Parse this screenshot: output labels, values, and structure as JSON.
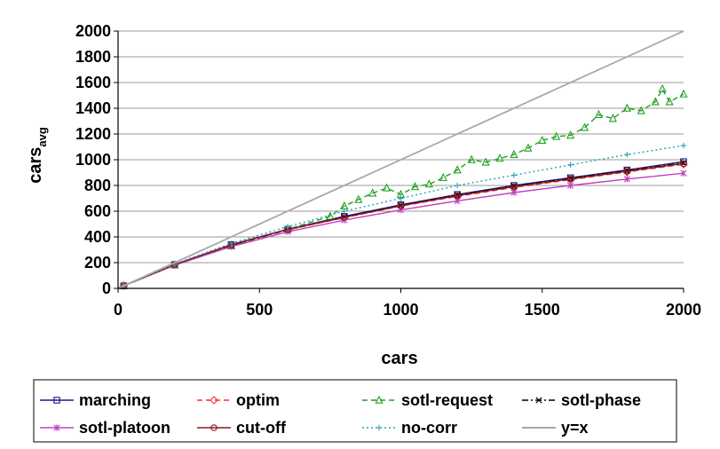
{
  "chart_data": {
    "type": "line",
    "title": "",
    "xlabel": "cars",
    "ylabel": {
      "main": "cars",
      "subscript": "avg"
    },
    "xlim": [
      0,
      2000
    ],
    "ylim": [
      0,
      2000
    ],
    "xticks": [
      "0",
      "500",
      "1000",
      "1500",
      "2000"
    ],
    "yticks": [
      "0",
      "200",
      "400",
      "600",
      "800",
      "1000",
      "1200",
      "1400",
      "1600",
      "1800",
      "2000"
    ],
    "grid": "horizontal",
    "legend_position": "bottom",
    "series": [
      {
        "name": "marching",
        "color": "#1a1a8c",
        "marker": "square",
        "dash": "solid",
        "x": [
          20,
          200,
          400,
          600,
          800,
          1000,
          1200,
          1400,
          1600,
          1800,
          2000
        ],
        "y": [
          20,
          185,
          340,
          460,
          560,
          650,
          730,
          800,
          860,
          920,
          985
        ]
      },
      {
        "name": "optim",
        "color": "#ff2a2a",
        "marker": "diamond",
        "dash": "dashed",
        "x": [
          20,
          200,
          400,
          600,
          800,
          1000,
          1200,
          1400,
          1600,
          1800,
          2000
        ],
        "y": [
          20,
          185,
          335,
          455,
          550,
          640,
          715,
          785,
          845,
          905,
          965
        ]
      },
      {
        "name": "sotl-request",
        "color": "#21a021",
        "marker": "triangle",
        "dash": "dashed",
        "x": [
          20,
          200,
          400,
          600,
          750,
          800,
          850,
          900,
          950,
          1000,
          1050,
          1100,
          1150,
          1200,
          1250,
          1300,
          1350,
          1400,
          1450,
          1500,
          1550,
          1600,
          1650,
          1700,
          1750,
          1800,
          1850,
          1900,
          1925,
          1950,
          2000
        ],
        "y": [
          20,
          180,
          330,
          460,
          560,
          640,
          690,
          740,
          780,
          730,
          790,
          810,
          860,
          920,
          1000,
          980,
          1010,
          1040,
          1090,
          1150,
          1180,
          1190,
          1250,
          1350,
          1320,
          1400,
          1380,
          1450,
          1550,
          1450,
          1510
        ]
      },
      {
        "name": "sotl-phase",
        "color": "#000000",
        "marker": "x",
        "dash": "dashdot",
        "x": [
          20,
          200,
          400,
          600,
          800,
          1000,
          1200,
          1400,
          1600,
          1800,
          2000
        ],
        "y": [
          20,
          185,
          335,
          455,
          555,
          645,
          725,
          795,
          855,
          915,
          975
        ]
      },
      {
        "name": "sotl-platoon",
        "color": "#c040c0",
        "marker": "star",
        "dash": "solid",
        "x": [
          20,
          200,
          400,
          600,
          800,
          1000,
          1200,
          1400,
          1600,
          1800,
          2000
        ],
        "y": [
          20,
          180,
          325,
          440,
          530,
          610,
          680,
          745,
          800,
          850,
          895
        ]
      },
      {
        "name": "cut-off",
        "color": "#8b1a1a",
        "marker": "circle",
        "dash": "solid",
        "x": [
          20,
          200,
          400,
          600,
          800,
          1000,
          1200,
          1400,
          1600,
          1800,
          2000
        ],
        "y": [
          20,
          185,
          338,
          458,
          552,
          642,
          720,
          790,
          850,
          910,
          970
        ]
      },
      {
        "name": "no-corr",
        "color": "#2aa0b0",
        "marker": "plus",
        "dash": "dotted",
        "x": [
          20,
          200,
          400,
          600,
          800,
          1000,
          1200,
          1400,
          1600,
          1800,
          2000
        ],
        "y": [
          20,
          190,
          350,
          480,
          600,
          700,
          800,
          880,
          960,
          1040,
          1110
        ]
      },
      {
        "name": "y=x",
        "color": "#a8a8a8",
        "marker": "none",
        "dash": "solid",
        "x": [
          0,
          2000
        ],
        "y": [
          0,
          2000
        ]
      }
    ]
  }
}
